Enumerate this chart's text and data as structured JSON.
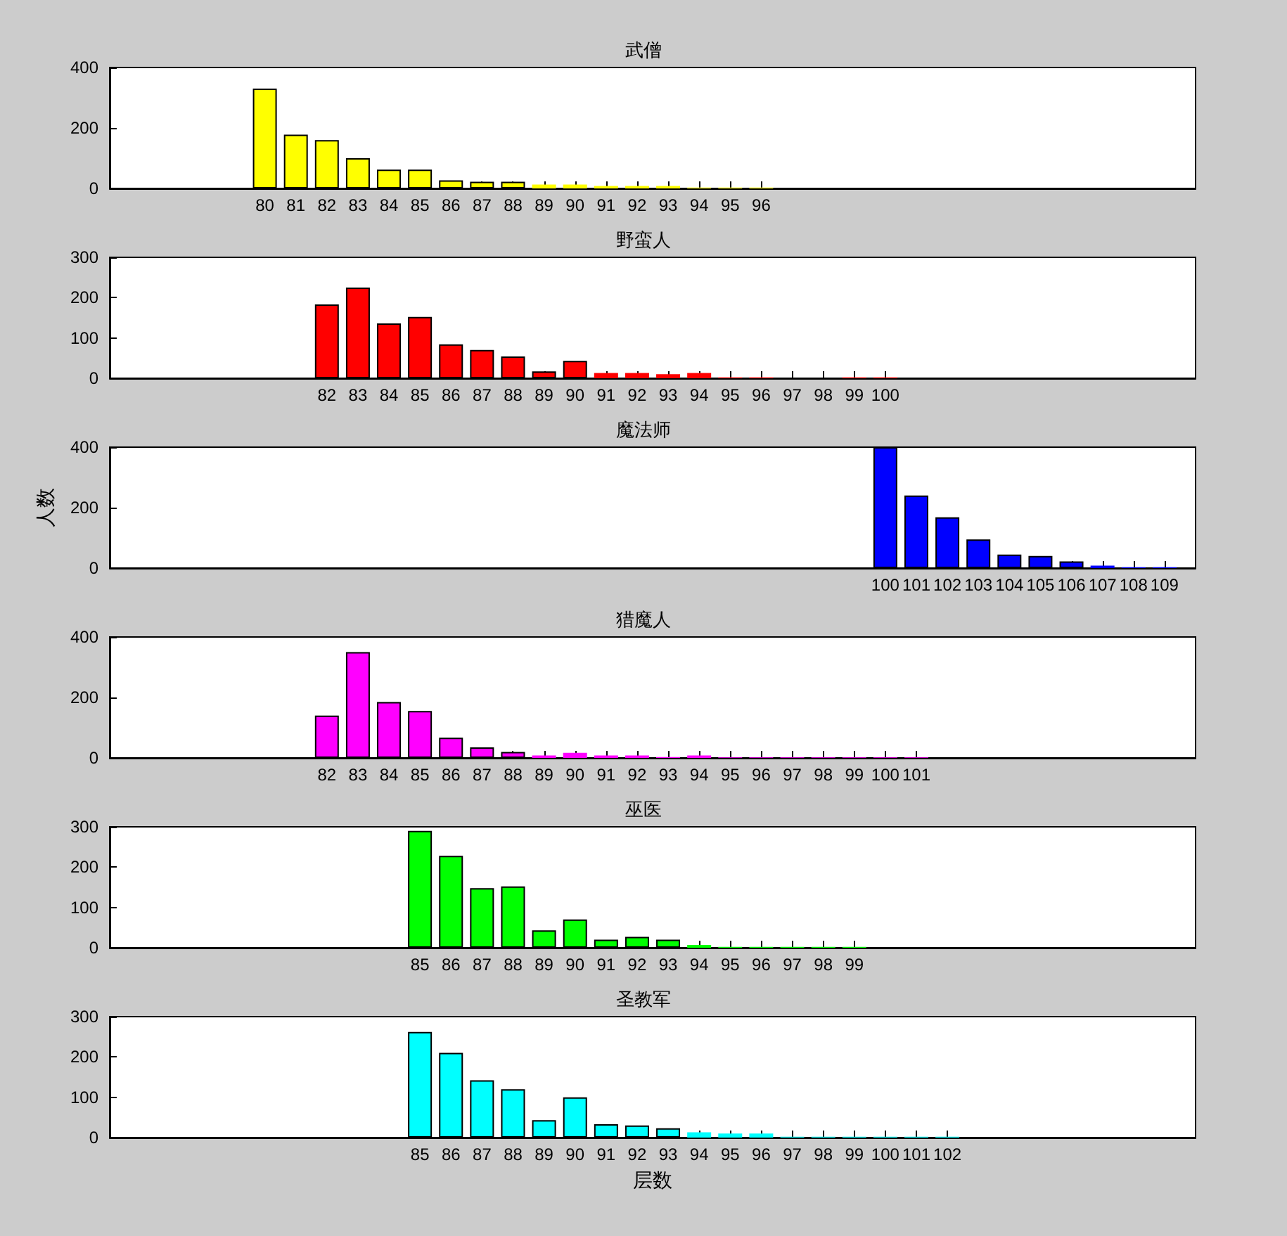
{
  "chart_data": [
    {
      "type": "bar",
      "title": "武僧",
      "x": [
        80,
        81,
        82,
        83,
        84,
        85,
        86,
        87,
        88,
        89,
        90,
        91,
        92,
        93,
        94,
        95,
        96
      ],
      "values": [
        330,
        178,
        160,
        100,
        62,
        62,
        27,
        22,
        22,
        13,
        13,
        8,
        8,
        8,
        3,
        3,
        3
      ],
      "color": "#ffff00",
      "xlim": [
        75,
        110
      ],
      "xticks": [
        80,
        81,
        82,
        83,
        84,
        85,
        86,
        87,
        88,
        89,
        90,
        91,
        92,
        93,
        94,
        95,
        96
      ],
      "ylim": [
        0,
        400
      ],
      "yticks": [
        0,
        200,
        400
      ]
    },
    {
      "type": "bar",
      "title": "野蛮人",
      "x": [
        82,
        83,
        84,
        85,
        86,
        87,
        88,
        89,
        90,
        91,
        92,
        93,
        94,
        95,
        96,
        97,
        98,
        99,
        100
      ],
      "values": [
        183,
        225,
        136,
        152,
        84,
        70,
        54,
        17,
        43,
        13,
        13,
        10,
        13,
        2,
        2,
        0,
        0,
        2,
        2
      ],
      "color": "#ff0000",
      "xlim": [
        75,
        110
      ],
      "xticks": [
        82,
        83,
        84,
        85,
        86,
        87,
        88,
        89,
        90,
        91,
        92,
        93,
        94,
        95,
        96,
        97,
        98,
        99,
        100
      ],
      "ylim": [
        0,
        300
      ],
      "yticks": [
        0,
        100,
        200,
        300
      ]
    },
    {
      "type": "bar",
      "title": "魔法师",
      "ylabel": "人数",
      "x": [
        100,
        101,
        102,
        103,
        104,
        105,
        106,
        107,
        108,
        109
      ],
      "values": [
        400,
        240,
        168,
        95,
        45,
        40,
        22,
        8,
        3,
        3
      ],
      "color": "#0000ff",
      "xlim": [
        75,
        110
      ],
      "xticks": [
        100,
        101,
        102,
        103,
        104,
        105,
        106,
        107,
        108,
        109
      ],
      "ylim": [
        0,
        400
      ],
      "yticks": [
        0,
        200,
        400
      ]
    },
    {
      "type": "bar",
      "title": "猎魔人",
      "x": [
        82,
        83,
        84,
        85,
        86,
        87,
        88,
        89,
        90,
        91,
        92,
        93,
        94,
        95,
        96,
        97,
        98,
        99,
        100,
        101
      ],
      "values": [
        140,
        350,
        185,
        155,
        67,
        35,
        20,
        8,
        17,
        8,
        8,
        3,
        8,
        2,
        2,
        2,
        2,
        2,
        2,
        2
      ],
      "color": "#ff00ff",
      "xlim": [
        75,
        110
      ],
      "xticks": [
        82,
        83,
        84,
        85,
        86,
        87,
        88,
        89,
        90,
        91,
        92,
        93,
        94,
        95,
        96,
        97,
        98,
        99,
        100,
        101
      ],
      "ylim": [
        0,
        400
      ],
      "yticks": [
        0,
        200,
        400
      ]
    },
    {
      "type": "bar",
      "title": "巫医",
      "x": [
        85,
        86,
        87,
        88,
        89,
        90,
        91,
        92,
        93,
        94,
        95,
        96,
        97,
        98,
        99
      ],
      "values": [
        290,
        228,
        148,
        152,
        43,
        70,
        20,
        27,
        20,
        7,
        2,
        2,
        2,
        2,
        2
      ],
      "color": "#00ff00",
      "xlim": [
        75,
        110
      ],
      "xticks": [
        85,
        86,
        87,
        88,
        89,
        90,
        91,
        92,
        93,
        94,
        95,
        96,
        97,
        98,
        99
      ],
      "ylim": [
        0,
        300
      ],
      "yticks": [
        0,
        100,
        200,
        300
      ]
    },
    {
      "type": "bar",
      "title": "圣教军",
      "xlabel": "层数",
      "x": [
        85,
        86,
        87,
        88,
        89,
        90,
        91,
        92,
        93,
        94,
        95,
        96,
        97,
        98,
        99,
        100,
        101,
        102
      ],
      "values": [
        262,
        210,
        142,
        120,
        43,
        100,
        33,
        30,
        23,
        13,
        10,
        10,
        2,
        2,
        2,
        2,
        2,
        2
      ],
      "color": "#00ffff",
      "xlim": [
        75,
        110
      ],
      "xticks": [
        85,
        86,
        87,
        88,
        89,
        90,
        91,
        92,
        93,
        94,
        95,
        96,
        97,
        98,
        99,
        100,
        101,
        102
      ],
      "ylim": [
        0,
        300
      ],
      "yticks": [
        0,
        100,
        200,
        300
      ]
    }
  ]
}
